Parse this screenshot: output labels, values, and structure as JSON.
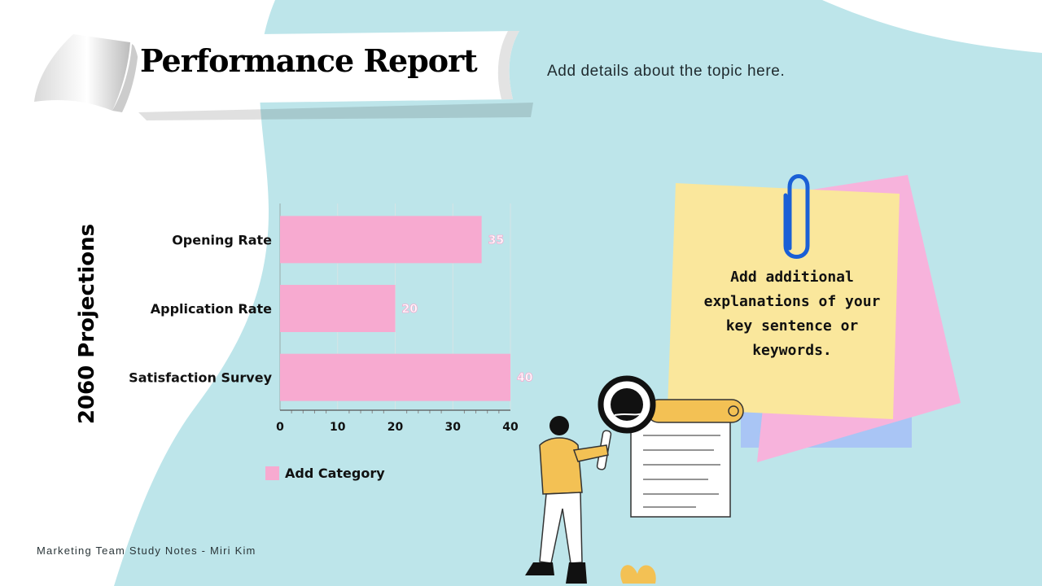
{
  "header": {
    "title": "Performance Report",
    "subtitle": "Add details about the topic here."
  },
  "side_title": "2060 Projections",
  "note": {
    "text": "Add additional explanations of your key sentence or keywords."
  },
  "footer": "Marketing Team Study Notes - Miri Kim",
  "colors": {
    "background_blob": "#bde5ea",
    "bar": "#f7aad0",
    "sticky_yellow": "#fae79c",
    "sticky_pink": "#f7b3dc",
    "sticky_blue": "#a9c5f5",
    "paperclip": "#1a5fd6"
  },
  "chart_data": {
    "type": "bar",
    "orientation": "horizontal",
    "categories": [
      "Opening Rate",
      "Application Rate",
      "Satisfaction Survey"
    ],
    "series": [
      {
        "name": "Add Category",
        "values": [
          35,
          20,
          40
        ]
      }
    ],
    "xlim": [
      0,
      40
    ],
    "xticks": [
      0,
      10,
      20,
      30,
      40
    ],
    "grid": true,
    "legend": "bottom-left",
    "data_labels": true
  }
}
